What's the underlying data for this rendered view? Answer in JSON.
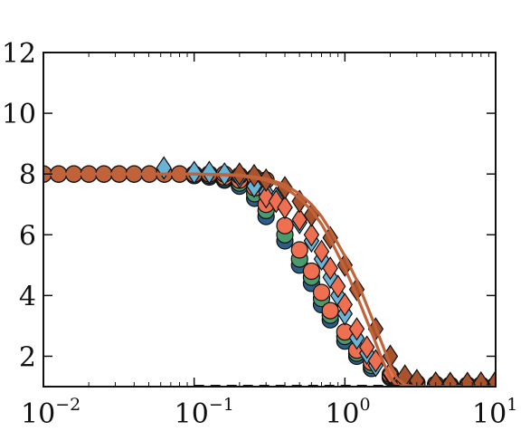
{
  "chart_data": {
    "type": "scatter",
    "title": "",
    "xlabel": "",
    "ylabel": "",
    "xscale": "log",
    "xlim": [
      0.01,
      10
    ],
    "ylim": [
      1,
      12
    ],
    "grid": false,
    "legend": "none",
    "x_ticks": [
      {
        "value": 0.01,
        "base": "10",
        "exp": "−2"
      },
      {
        "value": 0.1,
        "base": "10",
        "exp": "−1"
      },
      {
        "value": 1,
        "base": "10",
        "exp": "0"
      },
      {
        "value": 10,
        "base": "10",
        "exp": "1"
      }
    ],
    "y_ticks": [
      {
        "value": 2,
        "label": "2"
      },
      {
        "value": 4,
        "label": "4"
      },
      {
        "value": 6,
        "label": "6"
      },
      {
        "value": 8,
        "label": "8"
      },
      {
        "value": 10,
        "label": "10"
      },
      {
        "value": 12,
        "label": "12"
      }
    ],
    "series": [
      {
        "marker": "circle",
        "color": "#2b5f8a",
        "x": [
          0.01,
          0.0126,
          0.0159,
          0.02,
          0.0252,
          0.0318,
          0.04,
          0.0504,
          0.0635,
          0.08,
          0.1,
          0.126,
          0.159,
          0.2,
          0.252,
          0.3,
          0.4,
          0.5,
          0.6,
          0.7,
          0.8,
          1.0,
          1.2,
          1.5,
          2.0,
          2.5,
          3.0,
          4.0,
          5.0,
          6.5,
          8.0,
          10.0
        ],
        "y": [
          8.0,
          8.0,
          8.0,
          8.0,
          8.0,
          8.0,
          8.0,
          8.0,
          8.0,
          8.0,
          7.95,
          7.9,
          7.8,
          7.6,
          7.2,
          6.6,
          5.8,
          5.0,
          4.4,
          3.7,
          3.2,
          2.5,
          2.0,
          1.6,
          1.3,
          1.15,
          1.1,
          1.05,
          1.05,
          1.05,
          1.05,
          1.05
        ]
      },
      {
        "marker": "circle",
        "color": "#4a9a6b",
        "x": [
          0.01,
          0.0126,
          0.0159,
          0.02,
          0.0252,
          0.0318,
          0.04,
          0.0504,
          0.0635,
          0.08,
          0.1,
          0.126,
          0.159,
          0.2,
          0.252,
          0.3,
          0.4,
          0.5,
          0.6,
          0.7,
          0.8,
          1.0,
          1.2,
          1.5,
          2.0,
          2.5,
          3.0,
          4.0,
          5.0,
          6.5,
          8.0,
          10.0
        ],
        "y": [
          8.0,
          8.0,
          8.0,
          8.0,
          8.0,
          8.0,
          8.0,
          8.0,
          8.0,
          8.0,
          8.0,
          7.95,
          7.85,
          7.7,
          7.35,
          6.8,
          6.0,
          5.2,
          4.6,
          3.9,
          3.35,
          2.65,
          2.1,
          1.7,
          1.35,
          1.2,
          1.1,
          1.08,
          1.05,
          1.05,
          1.05,
          1.05
        ]
      },
      {
        "marker": "circle",
        "color": "#ee7050",
        "x": [
          0.01,
          0.0126,
          0.0159,
          0.02,
          0.0252,
          0.0318,
          0.04,
          0.0504,
          0.0635,
          0.08,
          0.1,
          0.126,
          0.159,
          0.2,
          0.252,
          0.3,
          0.4,
          0.5,
          0.6,
          0.7,
          0.8,
          1.0,
          1.2,
          1.5,
          2.0,
          2.5,
          3.0,
          4.0,
          5.0,
          6.5,
          8.0,
          10.0
        ],
        "y": [
          8.0,
          8.0,
          8.0,
          8.0,
          8.0,
          8.0,
          8.0,
          8.0,
          8.0,
          8.0,
          8.0,
          8.0,
          7.9,
          7.8,
          7.55,
          7.0,
          6.3,
          5.5,
          4.8,
          4.1,
          3.5,
          2.8,
          2.2,
          1.8,
          1.4,
          1.2,
          1.12,
          1.08,
          1.05,
          1.05,
          1.05,
          1.05
        ]
      },
      {
        "marker": "circle",
        "color": "#c0623a",
        "x": [
          0.01,
          0.0126,
          0.0159,
          0.02,
          0.0252,
          0.0318,
          0.04,
          0.0504,
          0.0635,
          0.08,
          0.1,
          0.126,
          0.159,
          0.2,
          0.252,
          0.3
        ],
        "y": [
          8.0,
          8.0,
          8.0,
          8.0,
          8.0,
          8.0,
          8.0,
          8.0,
          8.0,
          8.0,
          8.0,
          8.0,
          8.0,
          7.95,
          7.9,
          7.8
        ]
      },
      {
        "marker": "diamond",
        "color": "#6bb3d6",
        "x": [
          0.063,
          0.1,
          0.126,
          0.159,
          0.2,
          0.25,
          0.3,
          0.35,
          0.4,
          0.5,
          0.6,
          0.7,
          0.8,
          0.9,
          1.0,
          1.2,
          1.4,
          1.6,
          2.0,
          2.5,
          3.0,
          4.0,
          5.0,
          6.5,
          8.0,
          10.0
        ],
        "y": [
          8.2,
          8.05,
          8.05,
          8.0,
          7.9,
          7.6,
          7.4,
          7.2,
          6.9,
          6.4,
          5.8,
          5.2,
          4.6,
          4.0,
          3.4,
          2.6,
          2.1,
          1.7,
          1.4,
          1.2,
          1.15,
          1.1,
          1.1,
          1.1,
          1.1,
          1.15
        ]
      },
      {
        "marker": "diamond",
        "color": "#ee7050",
        "x": [
          0.3,
          0.35,
          0.4,
          0.5,
          0.6,
          0.7,
          0.8,
          0.9,
          1.0,
          1.2,
          1.4,
          1.6,
          2.0,
          2.5,
          3.0,
          4.0,
          5.0,
          6.5,
          8.0,
          10.0
        ],
        "y": [
          7.25,
          7.1,
          6.9,
          6.5,
          6.0,
          5.45,
          4.9,
          4.3,
          3.7,
          2.9,
          2.3,
          1.85,
          1.45,
          1.25,
          1.15,
          1.1,
          1.1,
          1.1,
          1.1,
          1.15
        ]
      },
      {
        "marker": "diamond",
        "color": "#a8532c",
        "x": [
          0.2,
          0.25,
          0.3,
          0.4,
          0.5,
          0.6,
          0.8,
          1.0,
          1.2,
          1.6,
          2.0,
          2.5,
          3.0,
          4.0,
          5.0,
          6.5,
          8.0,
          10.0
        ],
        "y": [
          8.0,
          7.95,
          7.8,
          7.55,
          7.1,
          6.65,
          5.9,
          5.0,
          4.2,
          2.9,
          2.0,
          1.35,
          1.2,
          1.12,
          1.1,
          1.1,
          1.12,
          1.15
        ]
      },
      {
        "marker": "line",
        "color": "#c0623a",
        "x": [
          0.01,
          0.05,
          0.1,
          0.2,
          0.3,
          0.4,
          0.5,
          0.6,
          0.7,
          0.8,
          1.0,
          1.2,
          1.5,
          1.8,
          2.0,
          2.2,
          2.5,
          3.0,
          5.0,
          10.0
        ],
        "y": [
          8.0,
          8.0,
          8.0,
          7.95,
          7.8,
          7.55,
          7.2,
          6.8,
          6.35,
          5.85,
          4.9,
          4.0,
          2.8,
          1.8,
          1.3,
          1.05,
          1.0,
          1.0,
          1.0,
          1.0
        ]
      },
      {
        "marker": "line",
        "color": "#c0623a",
        "x": [
          0.01,
          0.05,
          0.1,
          0.2,
          0.3,
          0.4,
          0.5,
          0.6,
          0.7,
          0.8,
          1.0,
          1.2,
          1.5,
          1.8,
          2.0,
          2.2,
          2.5,
          3.0,
          5.0,
          10.0
        ],
        "y": [
          8.0,
          8.0,
          8.0,
          7.97,
          7.85,
          7.65,
          7.35,
          7.0,
          6.6,
          6.15,
          5.3,
          4.5,
          3.3,
          2.3,
          1.7,
          1.3,
          1.05,
          1.0,
          1.0,
          1.0
        ]
      },
      {
        "marker": "dashed",
        "color": "#111111",
        "x": [
          0.1,
          2.5
        ],
        "y": [
          1.0,
          1.0
        ]
      }
    ]
  }
}
